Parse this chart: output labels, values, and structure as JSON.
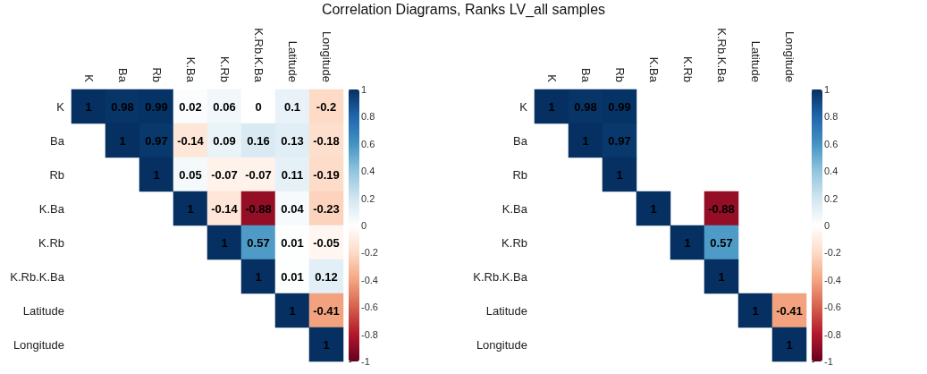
{
  "chart_data": [
    {
      "type": "heatmap",
      "title": "Correlation Diagrams, Ranks LV_all samples",
      "categories": [
        "K",
        "Ba",
        "Rb",
        "K.Ba",
        "K.Rb",
        "K.Rb.K.Ba",
        "Latitude",
        "Longitude"
      ],
      "y_categories": [
        "K",
        "Ba",
        "Rb",
        "K.Ba",
        "K.Rb",
        "K.Rb.K.Ba",
        "Latitude",
        "Longitude"
      ],
      "cells": [
        [
          1,
          0.98,
          0.99,
          0.02,
          0.06,
          0,
          0.1,
          -0.2
        ],
        [
          null,
          1,
          0.97,
          -0.14,
          0.09,
          0.16,
          0.13,
          -0.18
        ],
        [
          null,
          null,
          1,
          0.05,
          -0.07,
          -0.07,
          0.11,
          -0.19
        ],
        [
          null,
          null,
          null,
          1,
          -0.14,
          -0.88,
          0.04,
          -0.23
        ],
        [
          null,
          null,
          null,
          null,
          1,
          0.57,
          0.01,
          -0.05
        ],
        [
          null,
          null,
          null,
          null,
          null,
          1,
          0.01,
          0.12
        ],
        [
          null,
          null,
          null,
          null,
          null,
          null,
          1,
          -0.41
        ],
        [
          null,
          null,
          null,
          null,
          null,
          null,
          null,
          1
        ]
      ],
      "clim": [
        -1,
        1
      ],
      "cticks": [
        -1,
        -0.8,
        -0.6,
        -0.4,
        -0.2,
        0,
        0.2,
        0.4,
        0.6,
        0.8,
        1
      ],
      "data_labels": true
    },
    {
      "type": "heatmap",
      "categories": [
        "K",
        "Ba",
        "Rb",
        "K.Ba",
        "K.Rb",
        "K.Rb.K.Ba",
        "Latitude",
        "Longitude"
      ],
      "y_categories": [
        "K",
        "Ba",
        "Rb",
        "K.Ba",
        "K.Rb",
        "K.Rb.K.Ba",
        "Latitude",
        "Longitude"
      ],
      "cells": [
        [
          1,
          0.98,
          0.99,
          null,
          null,
          null,
          null,
          null
        ],
        [
          null,
          1,
          0.97,
          null,
          null,
          null,
          null,
          null
        ],
        [
          null,
          null,
          1,
          null,
          null,
          null,
          null,
          null
        ],
        [
          null,
          null,
          null,
          1,
          null,
          -0.88,
          null,
          null
        ],
        [
          null,
          null,
          null,
          null,
          1,
          0.57,
          null,
          null
        ],
        [
          null,
          null,
          null,
          null,
          null,
          1,
          null,
          null
        ],
        [
          null,
          null,
          null,
          null,
          null,
          null,
          1,
          -0.41
        ],
        [
          null,
          null,
          null,
          null,
          null,
          null,
          null,
          1
        ]
      ],
      "clim": [
        -1,
        1
      ],
      "cticks": [
        -1,
        -0.8,
        -0.6,
        -0.4,
        -0.2,
        0,
        0.2,
        0.4,
        0.6,
        0.8,
        1
      ],
      "data_labels": true
    }
  ]
}
